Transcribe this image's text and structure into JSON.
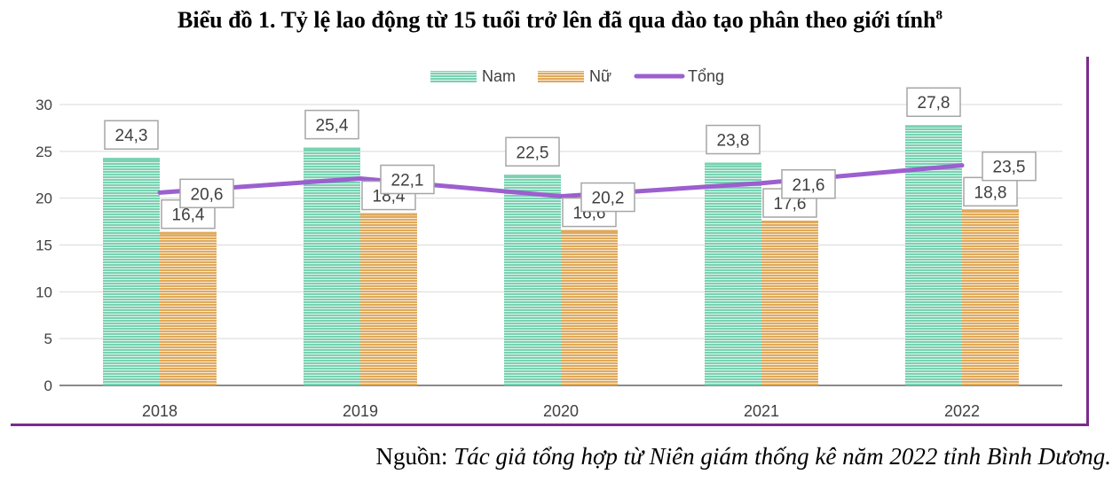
{
  "title": "Biểu đồ 1. Tỷ lệ lao động từ 15 tuổi trở lên đã qua đào tạo phân theo giới tính",
  "title_footnote": "8",
  "source_label": "Nguồn:",
  "source_text": "Tác giả tổng hợp từ Niên giám thống kê năm 2022 tỉnh Bình Dương.",
  "colors": {
    "nam": "#79d2b2",
    "nu": "#e0a95a",
    "tong": "#9c5fcf",
    "frame": "#7b2b8e"
  },
  "chart_data": {
    "type": "bar",
    "categories": [
      "2018",
      "2019",
      "2020",
      "2021",
      "2022"
    ],
    "series": [
      {
        "name": "Nam",
        "type": "bar",
        "values": [
          24.3,
          25.4,
          22.5,
          23.8,
          27.8
        ],
        "labels": [
          "24,3",
          "25,4",
          "22,5",
          "23,8",
          "27,8"
        ]
      },
      {
        "name": "Nữ",
        "type": "bar",
        "values": [
          16.4,
          18.4,
          16.6,
          17.6,
          18.8
        ],
        "labels": [
          "16,4",
          "18,4",
          "16,6",
          "17,6",
          "18,8"
        ]
      },
      {
        "name": "Tổng",
        "type": "line",
        "values": [
          20.6,
          22.1,
          20.2,
          21.6,
          23.5
        ],
        "labels": [
          "20,6",
          "22,1",
          "20,2",
          "21,6",
          "23,5"
        ]
      }
    ],
    "yticks": [
      "0",
      "5",
      "10",
      "15",
      "20",
      "25",
      "30"
    ],
    "ylim": [
      0,
      30
    ],
    "grid": true,
    "legend": "top-center"
  }
}
